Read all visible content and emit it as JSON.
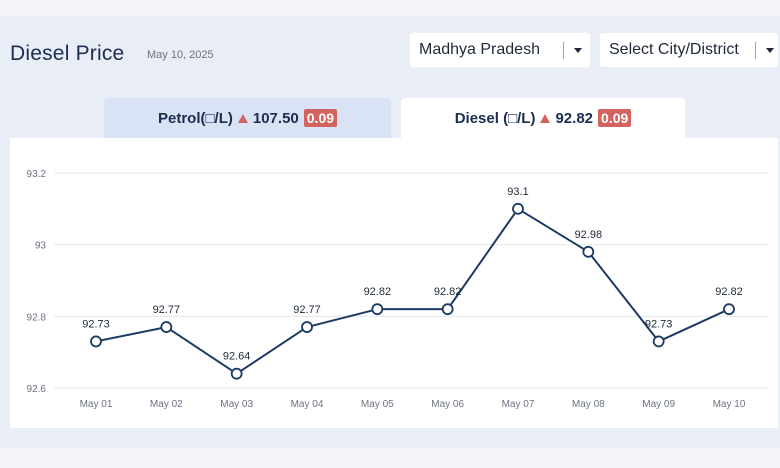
{
  "header": {
    "title": "Diesel Price",
    "date": "May 10, 2025"
  },
  "filters": {
    "state": "Madhya Pradesh",
    "city": "Select City/District"
  },
  "tabs": {
    "petrol": {
      "label": "Petrol(□/L)",
      "price": "107.50",
      "change": "0.09"
    },
    "diesel": {
      "label": "Diesel (□/L)",
      "price": "92.82",
      "change": "0.09"
    }
  },
  "colors": {
    "line": "#1c3a63",
    "badge": "#d2635f",
    "grid": "#e5e7eb"
  },
  "chart_data": {
    "type": "line",
    "categories": [
      "May 01",
      "May 02",
      "May 03",
      "May 04",
      "May 05",
      "May 06",
      "May 07",
      "May 08",
      "May 09",
      "May 10"
    ],
    "values": [
      92.73,
      92.77,
      92.64,
      92.77,
      92.82,
      92.82,
      93.1,
      92.98,
      92.73,
      92.82
    ],
    "data_labels": [
      "92.73",
      "92.77",
      "92.64",
      "92.77",
      "92.82",
      "92.82",
      "93.1",
      "92.98",
      "92.73",
      "92.82"
    ],
    "y_ticks": [
      "92.6",
      "92.8",
      "93",
      "93.2"
    ],
    "ylim": [
      92.6,
      93.2
    ],
    "grid": true
  }
}
